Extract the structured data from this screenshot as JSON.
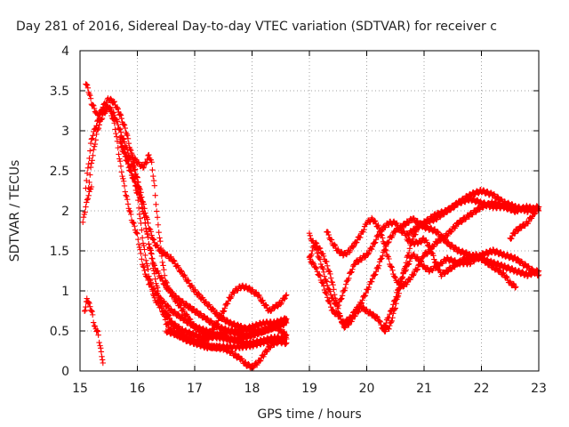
{
  "chart_data": {
    "type": "scatter",
    "title": "Day 281 of 2016, Sidereal Day-to-day VTEC variation (SDTVAR) for receiver c",
    "xlabel": "GPS time / hours",
    "ylabel": "SDTVAR / TECUs",
    "xlim": [
      15,
      23
    ],
    "ylim": [
      0,
      4
    ],
    "xticks": [
      "15",
      "16",
      "17",
      "18",
      "19",
      "20",
      "21",
      "22",
      "23"
    ],
    "yticks": [
      "0",
      "0.5",
      "1",
      "1.5",
      "2",
      "2.5",
      "3",
      "3.5",
      "4"
    ],
    "grid": true,
    "marker": "plus",
    "color": "#ff0000",
    "series": [
      {
        "x": [
          15.1,
          15.15,
          15.2,
          15.3,
          15.4,
          15.5,
          15.6,
          15.7,
          15.8,
          15.9,
          16.0,
          16.1,
          16.2,
          16.3,
          16.4,
          16.5,
          16.6,
          16.8,
          17.0,
          17.2,
          17.4,
          17.6,
          17.8,
          18.0,
          18.2,
          18.4,
          18.6
        ],
        "y": [
          3.6,
          3.5,
          3.35,
          3.2,
          3.25,
          3.3,
          3.2,
          3.0,
          2.8,
          2.6,
          2.4,
          2.1,
          1.8,
          1.6,
          1.5,
          1.45,
          1.4,
          1.2,
          1.0,
          0.85,
          0.7,
          0.6,
          0.55,
          0.5,
          0.5,
          0.55,
          0.65
        ]
      },
      {
        "x": [
          15.1,
          15.2,
          15.3,
          15.4,
          15.5,
          15.6,
          15.7,
          15.8,
          15.9,
          16.0,
          16.1,
          16.2,
          16.3,
          16.5,
          16.7,
          17.0,
          17.2,
          17.4,
          17.6,
          17.8,
          18.0,
          18.2,
          18.4,
          18.6
        ],
        "y": [
          2.3,
          2.9,
          3.1,
          3.3,
          3.4,
          3.35,
          3.2,
          3.0,
          2.7,
          2.4,
          2.0,
          1.6,
          1.3,
          1.05,
          0.9,
          0.75,
          0.65,
          0.55,
          0.5,
          0.45,
          0.45,
          0.5,
          0.55,
          0.6
        ]
      },
      {
        "x": [
          15.15,
          15.2,
          15.25,
          15.3,
          15.4,
          15.5,
          15.6,
          15.7,
          15.8,
          15.9,
          16.0,
          16.1,
          16.2,
          16.3,
          16.4,
          16.6,
          16.8,
          17.0,
          17.2,
          17.4,
          17.6,
          17.8,
          18.0,
          18.2,
          18.4,
          18.6
        ],
        "y": [
          2.3,
          2.6,
          2.8,
          3.0,
          3.2,
          3.3,
          3.1,
          2.6,
          2.2,
          1.9,
          1.7,
          1.3,
          1.1,
          1.0,
          0.9,
          0.75,
          0.65,
          0.55,
          0.5,
          0.45,
          0.4,
          0.4,
          0.45,
          0.5,
          0.55,
          0.45
        ]
      },
      {
        "x": [
          15.7,
          15.8,
          15.9,
          16.0,
          16.1,
          16.2,
          16.3,
          16.4,
          16.6,
          16.8,
          17.0,
          17.2,
          17.4,
          17.6,
          17.8,
          18.0,
          18.2,
          18.4,
          18.6
        ],
        "y": [
          2.9,
          2.7,
          2.5,
          2.2,
          1.6,
          1.2,
          0.9,
          0.8,
          0.6,
          0.5,
          0.45,
          0.4,
          0.45,
          0.5,
          0.5,
          0.55,
          0.6,
          0.6,
          0.65
        ]
      },
      {
        "x": [
          15.9,
          16.0,
          16.1,
          16.15,
          16.2,
          16.25,
          16.3,
          16.35,
          16.4,
          16.45,
          16.5,
          16.6,
          16.7,
          16.8,
          16.9,
          17.0,
          17.2,
          17.4,
          17.6,
          17.8,
          18.0,
          18.2,
          18.4,
          18.6
        ],
        "y": [
          2.7,
          2.6,
          2.55,
          2.6,
          2.7,
          2.6,
          2.3,
          1.9,
          1.6,
          1.3,
          1.1,
          0.95,
          0.85,
          0.75,
          0.65,
          0.55,
          0.45,
          0.42,
          0.4,
          0.35,
          0.35,
          0.38,
          0.42,
          0.4
        ]
      },
      {
        "x": [
          15.7,
          15.8,
          15.9,
          16.0,
          16.1,
          16.2,
          16.3,
          16.4,
          16.5,
          16.6,
          16.7,
          16.8,
          17.0,
          17.2,
          17.4,
          17.6,
          17.8,
          18.0,
          18.2,
          18.4,
          18.6
        ],
        "y": [
          2.85,
          2.65,
          2.45,
          2.3,
          2.0,
          1.6,
          1.2,
          0.85,
          0.6,
          0.5,
          0.45,
          0.4,
          0.35,
          0.3,
          0.3,
          0.3,
          0.3,
          0.32,
          0.36,
          0.38,
          0.35
        ]
      },
      {
        "x": [
          16.5,
          16.6,
          16.7,
          16.8,
          16.9,
          17.0,
          17.1,
          17.2,
          17.3,
          17.4,
          17.5,
          17.6,
          17.7,
          17.8,
          17.9,
          18.0,
          18.1,
          18.2,
          18.3,
          18.4,
          18.5,
          18.6
        ],
        "y": [
          0.75,
          0.6,
          0.5,
          0.42,
          0.38,
          0.35,
          0.36,
          0.4,
          0.5,
          0.6,
          0.75,
          0.9,
          1.0,
          1.05,
          1.05,
          1.0,
          0.95,
          0.85,
          0.75,
          0.8,
          0.85,
          0.95
        ]
      },
      {
        "x": [
          16.5,
          16.7,
          16.9,
          17.1,
          17.3,
          17.5,
          17.6,
          17.7,
          17.8,
          17.9,
          18.0,
          18.1,
          18.2,
          18.3,
          18.4,
          18.5,
          18.6
        ],
        "y": [
          0.5,
          0.45,
          0.4,
          0.35,
          0.3,
          0.28,
          0.25,
          0.2,
          0.15,
          0.08,
          0.05,
          0.1,
          0.2,
          0.3,
          0.35,
          0.38,
          0.4
        ]
      },
      {
        "x": [
          15.08,
          15.1,
          15.12,
          15.15,
          15.2,
          15.22,
          15.25,
          15.3,
          15.32,
          15.35,
          15.38,
          15.4
        ],
        "y": [
          0.75,
          0.8,
          0.9,
          0.85,
          0.75,
          0.7,
          0.55,
          0.5,
          0.45,
          0.3,
          0.2,
          0.1
        ]
      },
      {
        "x": [
          15.05,
          15.1,
          15.15,
          15.2
        ],
        "y": [
          1.85,
          2.05,
          2.2,
          2.3
        ]
      },
      {
        "x": [
          19.0,
          19.1,
          19.2,
          19.3,
          19.4,
          19.5,
          19.6,
          19.7,
          19.8,
          19.9,
          20.0,
          20.1,
          20.2,
          20.3,
          20.4,
          20.5,
          20.6,
          20.7,
          20.8,
          20.9,
          21.0,
          21.2,
          21.4,
          21.6,
          21.8,
          22.0,
          22.2,
          22.4,
          22.6,
          22.8,
          23.0
        ],
        "y": [
          1.4,
          1.6,
          1.5,
          1.35,
          1.1,
          0.75,
          0.55,
          0.6,
          0.7,
          0.8,
          0.75,
          0.7,
          0.65,
          0.5,
          0.55,
          0.8,
          1.1,
          1.4,
          1.65,
          1.8,
          1.85,
          1.95,
          2.0,
          2.1,
          2.2,
          2.25,
          2.2,
          2.1,
          2.05,
          2.0,
          2.05
        ]
      },
      {
        "x": [
          19.0,
          19.1,
          19.2,
          19.3,
          19.4,
          19.5,
          19.6,
          19.7,
          19.8,
          19.9,
          20.0,
          20.1,
          20.2,
          20.3,
          20.4,
          20.5,
          20.6,
          20.7,
          20.8,
          21.0,
          21.2,
          21.4,
          21.6,
          21.8,
          22.0,
          22.2,
          22.4,
          22.6,
          22.8,
          23.0
        ],
        "y": [
          1.7,
          1.55,
          1.35,
          1.1,
          0.9,
          0.8,
          1.0,
          1.2,
          1.35,
          1.4,
          1.45,
          1.55,
          1.7,
          1.8,
          1.85,
          1.85,
          1.75,
          1.7,
          1.75,
          1.85,
          1.9,
          2.0,
          2.1,
          2.15,
          2.1,
          2.05,
          2.05,
          2.0,
          2.05,
          2.0
        ]
      },
      {
        "x": [
          19.0,
          19.1,
          19.2,
          19.3,
          19.4,
          19.5,
          19.6,
          19.7,
          19.8,
          19.9,
          20.0,
          20.1,
          20.2,
          20.3,
          20.4,
          20.5,
          20.6,
          20.7,
          20.8,
          20.9,
          21.0,
          21.2,
          21.4,
          21.6,
          21.8,
          22.0,
          22.2,
          22.4,
          22.6,
          22.8,
          23.0
        ],
        "y": [
          1.4,
          1.3,
          1.15,
          0.95,
          0.75,
          0.7,
          0.6,
          0.65,
          0.75,
          0.85,
          1.0,
          1.15,
          1.3,
          1.5,
          1.65,
          1.75,
          1.8,
          1.85,
          1.9,
          1.85,
          1.8,
          1.75,
          1.6,
          1.5,
          1.45,
          1.4,
          1.35,
          1.3,
          1.25,
          1.2,
          1.25
        ]
      },
      {
        "x": [
          19.3,
          19.4,
          19.5,
          19.6,
          19.7,
          19.8,
          19.9,
          20.0,
          20.1,
          20.2,
          20.3,
          20.4,
          20.5,
          20.6,
          20.7,
          20.8,
          20.9,
          21.0,
          21.1,
          21.2,
          21.4,
          21.6,
          21.8,
          22.0,
          22.2,
          22.4,
          22.6
        ],
        "y": [
          1.75,
          1.6,
          1.5,
          1.45,
          1.5,
          1.6,
          1.7,
          1.85,
          1.9,
          1.8,
          1.6,
          1.35,
          1.15,
          1.05,
          1.1,
          1.2,
          1.3,
          1.45,
          1.5,
          1.6,
          1.7,
          1.85,
          1.95,
          2.05,
          2.1,
          2.05,
          2.0
        ]
      },
      {
        "x": [
          20.3,
          20.4,
          20.5,
          20.6,
          20.7,
          20.8,
          20.9,
          21.0,
          21.1,
          21.2,
          21.3,
          21.4,
          21.6,
          21.8,
          22.0,
          22.2,
          22.4,
          22.6,
          22.8,
          23.0
        ],
        "y": [
          0.55,
          0.7,
          0.9,
          1.15,
          1.3,
          1.45,
          1.4,
          1.3,
          1.25,
          1.3,
          1.35,
          1.4,
          1.35,
          1.35,
          1.45,
          1.5,
          1.45,
          1.4,
          1.3,
          1.2
        ]
      },
      {
        "x": [
          20.7,
          20.8,
          20.9,
          21.0,
          21.1,
          21.2,
          21.3,
          21.4,
          21.5,
          21.6,
          21.7,
          21.8,
          21.9,
          22.0,
          22.1,
          22.2,
          22.3,
          22.4,
          22.5,
          22.6
        ],
        "y": [
          1.65,
          1.6,
          1.6,
          1.65,
          1.55,
          1.35,
          1.2,
          1.25,
          1.3,
          1.35,
          1.4,
          1.4,
          1.45,
          1.4,
          1.35,
          1.3,
          1.25,
          1.2,
          1.1,
          1.05
        ]
      },
      {
        "x": [
          22.5,
          22.6,
          22.7,
          22.8,
          22.9,
          23.0
        ],
        "y": [
          1.65,
          1.75,
          1.8,
          1.85,
          1.95,
          2.05
        ]
      }
    ]
  }
}
